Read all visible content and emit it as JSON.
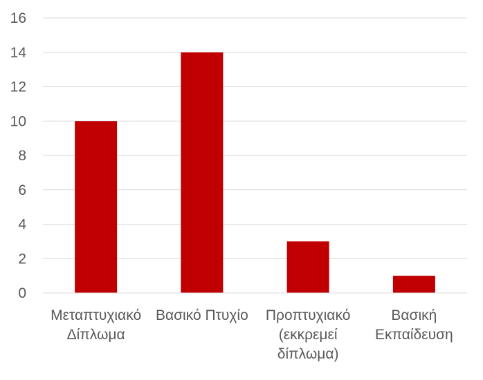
{
  "chart_data": {
    "type": "bar",
    "categories": [
      [
        "Μεταπτυχιακό",
        "Δίπλωμα"
      ],
      [
        "Βασικό Πτυχίο"
      ],
      [
        "Προπτυχιακό",
        "(εκκρεμεί",
        "δίπλωμα)"
      ],
      [
        "Βασική",
        "Εκπαίδευση"
      ]
    ],
    "values": [
      10,
      14,
      3,
      1
    ],
    "y_ticks": [
      "0",
      "2",
      "4",
      "6",
      "8",
      "10",
      "12",
      "14",
      "16"
    ],
    "ylim": [
      0,
      16
    ],
    "grid": true,
    "legend": "none",
    "bar_color": "#c00000"
  }
}
